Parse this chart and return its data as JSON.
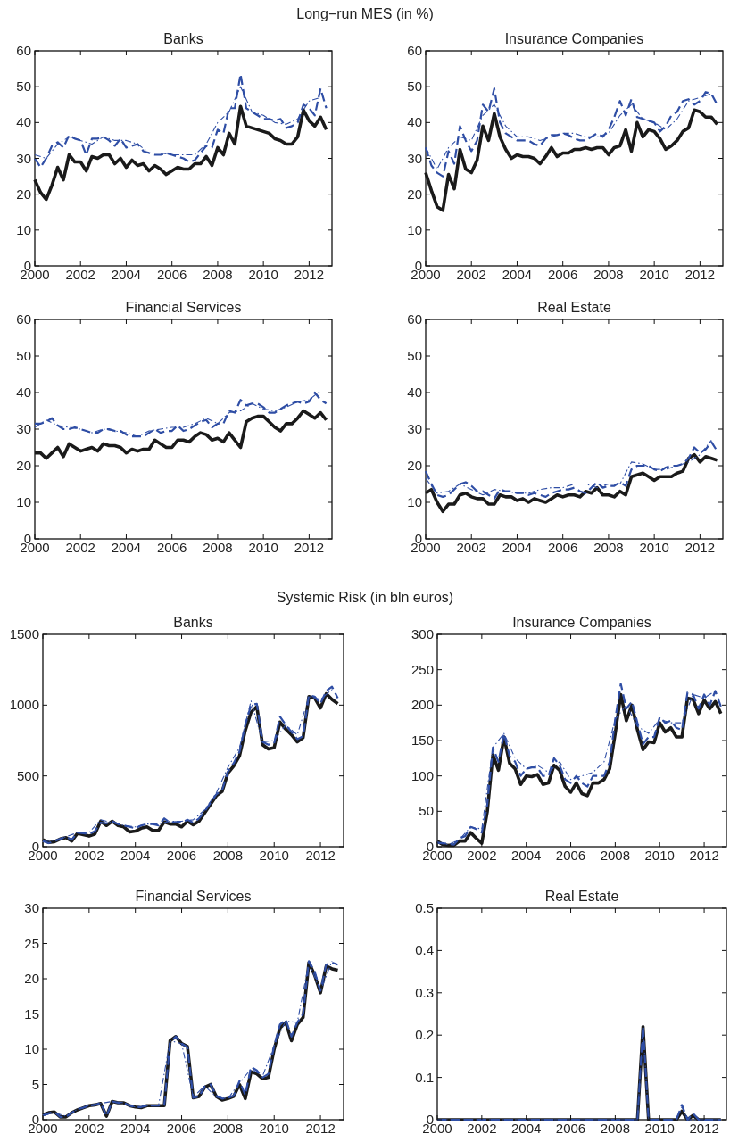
{
  "chart_data": [
    {
      "type": "line",
      "title": "Banks",
      "annotations": [
        "Long−run MES (in %)"
      ],
      "xlim": [
        2000,
        2013
      ],
      "xticks": [
        2000,
        2002,
        2004,
        2006,
        2008,
        2010,
        2012
      ],
      "ylim": [
        0,
        60
      ],
      "yticks": [
        0,
        10,
        20,
        30,
        40,
        50,
        60
      ],
      "grid": false,
      "x": [
        2000,
        2000.25,
        2000.5,
        2000.75,
        2001,
        2001.25,
        2001.5,
        2001.75,
        2002,
        2002.25,
        2002.5,
        2002.75,
        2003,
        2003.25,
        2003.5,
        2003.75,
        2004,
        2004.25,
        2004.5,
        2004.75,
        2005,
        2005.25,
        2005.5,
        2005.75,
        2006,
        2006.25,
        2006.5,
        2006.75,
        2007,
        2007.25,
        2007.5,
        2007.75,
        2008,
        2008.25,
        2008.5,
        2008.75,
        2009,
        2009.25,
        2009.5,
        2009.75,
        2010,
        2010.25,
        2010.5,
        2010.75,
        2011,
        2011.25,
        2011.5,
        2011.75,
        2012,
        2012.25,
        2012.5,
        2012.75
      ],
      "series": [
        {
          "color": "#1a1a1a",
          "line_style": "solid",
          "values": [
            24,
            20.5,
            18.5,
            22.5,
            27.5,
            24,
            31,
            29,
            29,
            26.5,
            30.5,
            30,
            31,
            31,
            28.5,
            30,
            27.5,
            29.5,
            28,
            28.5,
            26.5,
            28,
            27,
            25.5,
            26.5,
            27.5,
            27,
            27,
            28.5,
            28.5,
            30.5,
            28,
            33,
            31,
            37,
            34,
            44.5,
            39,
            38.5,
            38,
            37.5,
            37,
            35.5,
            35,
            34,
            34,
            36,
            43.5,
            40.5,
            39,
            41.5,
            38
          ]
        },
        {
          "color": "#2f4ea5",
          "line_style": "dashed",
          "values": [
            30,
            27.5,
            30,
            33.5,
            34.5,
            33,
            36.5,
            35.5,
            35,
            31,
            35.5,
            35.5,
            36,
            35,
            33.5,
            35.5,
            33,
            33.5,
            34,
            32,
            31.5,
            31,
            31,
            31.5,
            31,
            30.5,
            30,
            29,
            29.5,
            31.5,
            33.5,
            33,
            38,
            37,
            44,
            44,
            53.5,
            44,
            43,
            42,
            41,
            41,
            40.5,
            41,
            38.5,
            39,
            40,
            45,
            44,
            42,
            49.5,
            44
          ]
        },
        {
          "color": "#2f4ea5",
          "line_style": "dotted",
          "x": [
            2000,
            2000.5,
            2001,
            2001.5,
            2002,
            2002.5,
            2003,
            2003.5,
            2004,
            2004.5,
            2005,
            2005.5,
            2006,
            2006.5,
            2007,
            2007.5,
            2008,
            2008.5,
            2009,
            2009.5,
            2010,
            2010.5,
            2011,
            2011.5,
            2012,
            2012.5
          ],
          "values": [
            31,
            30,
            34,
            36,
            35,
            34,
            36,
            35,
            35,
            34,
            31.5,
            31.5,
            31,
            31,
            31,
            34,
            40,
            43,
            50,
            43,
            42,
            40,
            39.5,
            41,
            46,
            47
          ]
        }
      ]
    },
    {
      "type": "line",
      "title": "Insurance Companies",
      "xlim": [
        2000,
        2013
      ],
      "xticks": [
        2000,
        2002,
        2004,
        2006,
        2008,
        2010,
        2012
      ],
      "ylim": [
        0,
        60
      ],
      "yticks": [
        0,
        10,
        20,
        30,
        40,
        50,
        60
      ],
      "grid": false,
      "x": [
        2000,
        2000.25,
        2000.5,
        2000.75,
        2001,
        2001.25,
        2001.5,
        2001.75,
        2002,
        2002.25,
        2002.5,
        2002.75,
        2003,
        2003.25,
        2003.5,
        2003.75,
        2004,
        2004.25,
        2004.5,
        2004.75,
        2005,
        2005.25,
        2005.5,
        2005.75,
        2006,
        2006.25,
        2006.5,
        2006.75,
        2007,
        2007.25,
        2007.5,
        2007.75,
        2008,
        2008.25,
        2008.5,
        2008.75,
        2009,
        2009.25,
        2009.5,
        2009.75,
        2010,
        2010.25,
        2010.5,
        2010.75,
        2011,
        2011.25,
        2011.5,
        2011.75,
        2012,
        2012.25,
        2012.5,
        2012.75
      ],
      "series": [
        {
          "color": "#1a1a1a",
          "line_style": "solid",
          "values": [
            26,
            21,
            16.5,
            15.5,
            25.5,
            21.5,
            32.5,
            27,
            26,
            29.5,
            39,
            35,
            42.5,
            36,
            32.5,
            30,
            31,
            30.5,
            30.5,
            30,
            28.5,
            30.5,
            33,
            30.5,
            31.5,
            31.5,
            32.5,
            32.5,
            33,
            32.5,
            33,
            33,
            31,
            33,
            33.5,
            38,
            32,
            40,
            36,
            38,
            37.5,
            35.5,
            32.5,
            33.5,
            35,
            37.5,
            38.5,
            43.5,
            43,
            41.5,
            41.5,
            39.5
          ]
        },
        {
          "color": "#2f4ea5",
          "line_style": "dashed",
          "values": [
            33,
            28,
            26,
            25,
            32,
            28.5,
            39,
            35,
            32,
            35,
            45,
            43,
            49.5,
            40,
            37,
            36,
            35,
            35,
            35,
            34,
            33.5,
            35.5,
            36.5,
            36.5,
            37,
            36.5,
            35.5,
            35,
            35,
            36,
            37,
            36,
            38,
            41.5,
            46,
            42,
            46.5,
            41.5,
            41,
            40.5,
            40,
            37.5,
            39,
            42,
            43,
            46,
            46.5,
            45,
            46,
            48.5,
            48,
            45
          ]
        },
        {
          "color": "#2f4ea5",
          "line_style": "dotted",
          "x": [
            2000,
            2000.5,
            2001,
            2001.5,
            2002,
            2002.5,
            2003,
            2003.5,
            2004,
            2004.5,
            2005,
            2005.5,
            2006,
            2006.5,
            2007,
            2007.5,
            2008,
            2008.5,
            2009,
            2009.5,
            2010,
            2010.5,
            2011,
            2011.5,
            2012,
            2012.5
          ],
          "values": [
            33,
            27,
            33,
            36,
            35,
            42,
            45,
            39,
            36,
            36,
            35,
            36,
            37,
            37,
            36,
            36,
            37,
            42,
            45,
            41,
            40,
            38,
            41,
            46,
            47,
            48
          ]
        }
      ]
    },
    {
      "type": "line",
      "title": "Financial Services",
      "xlim": [
        2000,
        2013
      ],
      "xticks": [
        2000,
        2002,
        2004,
        2006,
        2008,
        2010,
        2012
      ],
      "ylim": [
        0,
        60
      ],
      "yticks": [
        0,
        10,
        20,
        30,
        40,
        50,
        60
      ],
      "grid": false,
      "x": [
        2000,
        2000.25,
        2000.5,
        2000.75,
        2001,
        2001.25,
        2001.5,
        2001.75,
        2002,
        2002.25,
        2002.5,
        2002.75,
        2003,
        2003.25,
        2003.5,
        2003.75,
        2004,
        2004.25,
        2004.5,
        2004.75,
        2005,
        2005.25,
        2005.5,
        2005.75,
        2006,
        2006.25,
        2006.5,
        2006.75,
        2007,
        2007.25,
        2007.5,
        2007.75,
        2008,
        2008.25,
        2008.5,
        2008.75,
        2009,
        2009.25,
        2009.5,
        2009.75,
        2010,
        2010.25,
        2010.5,
        2010.75,
        2011,
        2011.25,
        2011.5,
        2011.75,
        2012,
        2012.25,
        2012.5,
        2012.75
      ],
      "series": [
        {
          "color": "#1a1a1a",
          "line_style": "solid",
          "values": [
            23.5,
            23.5,
            22,
            23.5,
            25,
            22.5,
            26,
            25,
            24,
            24.5,
            25,
            24,
            26,
            25.5,
            25.5,
            25,
            23.5,
            24.5,
            24,
            24.5,
            24.5,
            27,
            26,
            25,
            25,
            27,
            27,
            26.5,
            28,
            29,
            28.5,
            27,
            27.5,
            26.5,
            29,
            27,
            25,
            32,
            33,
            33.5,
            33.5,
            32,
            30.5,
            29.5,
            31.5,
            31.5,
            33,
            35,
            34,
            33,
            34.5,
            32.5
          ]
        },
        {
          "color": "#2f4ea5",
          "line_style": "dashed",
          "values": [
            31.5,
            31.5,
            32,
            33,
            31,
            30,
            30,
            30.5,
            30,
            29.5,
            29,
            29,
            30,
            30,
            29.5,
            29.5,
            28.5,
            28,
            28,
            28,
            29,
            30,
            29,
            29.5,
            29.5,
            31,
            29.5,
            30,
            31,
            32,
            32.5,
            30.5,
            31.5,
            31.5,
            35,
            34.5,
            38,
            36.5,
            37,
            37,
            36,
            34.5,
            34.5,
            35.5,
            36.5,
            37,
            37.5,
            37,
            37.5,
            40,
            38,
            37
          ]
        },
        {
          "color": "#2f4ea5",
          "line_style": "dotted",
          "x": [
            2000,
            2000.5,
            2001,
            2001.5,
            2002,
            2002.5,
            2003,
            2003.5,
            2004,
            2004.5,
            2005,
            2005.5,
            2006,
            2006.5,
            2007,
            2007.5,
            2008,
            2008.5,
            2009,
            2009.5,
            2010,
            2010.5,
            2011,
            2011.5,
            2012,
            2012.5
          ],
          "values": [
            30.5,
            32.5,
            31,
            30.5,
            30,
            29,
            30,
            29.5,
            29,
            28,
            29.5,
            30,
            30.5,
            30.5,
            31.5,
            33,
            31.5,
            34.5,
            35,
            37,
            35.5,
            35,
            36,
            37.5,
            38,
            40.5
          ]
        }
      ]
    },
    {
      "type": "line",
      "title": "Real Estate",
      "xlim": [
        2000,
        2013
      ],
      "xticks": [
        2000,
        2002,
        2004,
        2006,
        2008,
        2010,
        2012
      ],
      "ylim": [
        0,
        60
      ],
      "yticks": [
        0,
        10,
        20,
        30,
        40,
        50,
        60
      ],
      "grid": false,
      "x": [
        2000,
        2000.25,
        2000.5,
        2000.75,
        2001,
        2001.25,
        2001.5,
        2001.75,
        2002,
        2002.25,
        2002.5,
        2002.75,
        2003,
        2003.25,
        2003.5,
        2003.75,
        2004,
        2004.25,
        2004.5,
        2004.75,
        2005,
        2005.25,
        2005.5,
        2005.75,
        2006,
        2006.25,
        2006.5,
        2006.75,
        2007,
        2007.25,
        2007.5,
        2007.75,
        2008,
        2008.25,
        2008.5,
        2008.75,
        2009,
        2009.25,
        2009.5,
        2009.75,
        2010,
        2010.25,
        2010.5,
        2010.75,
        2011,
        2011.25,
        2011.5,
        2011.75,
        2012,
        2012.25,
        2012.5,
        2012.75
      ],
      "series": [
        {
          "color": "#1a1a1a",
          "line_style": "solid",
          "values": [
            12.5,
            13.5,
            10,
            7.5,
            9.5,
            9.5,
            12,
            12.5,
            11.5,
            11,
            11,
            9.5,
            9.5,
            12,
            11.5,
            11.5,
            10.5,
            11,
            10,
            11,
            10.5,
            10,
            11,
            12,
            11.5,
            12,
            12,
            11.5,
            13,
            12.5,
            14,
            12,
            12,
            11.5,
            13,
            12,
            17,
            17.5,
            18,
            17,
            16,
            17,
            17,
            17,
            18,
            18.5,
            22,
            23,
            21,
            22.5,
            22,
            21.5
          ]
        },
        {
          "color": "#2f4ea5",
          "line_style": "dashed",
          "values": [
            18.5,
            15,
            12,
            11.5,
            12,
            13.5,
            15,
            15.5,
            14.5,
            13,
            13,
            12,
            11,
            13.5,
            13,
            13,
            12.5,
            12.5,
            12,
            12.5,
            12,
            11.5,
            12.5,
            13,
            13.5,
            13.5,
            14,
            13,
            12.5,
            14,
            15.5,
            14,
            14.5,
            14.5,
            15.5,
            14.5,
            19,
            20,
            20,
            20,
            19,
            18.5,
            19.5,
            20,
            20,
            20.5,
            22,
            25,
            23.5,
            24.5,
            26.5,
            24
          ]
        },
        {
          "color": "#2f4ea5",
          "line_style": "dotted",
          "x": [
            2000,
            2000.5,
            2001,
            2001.5,
            2002,
            2002.5,
            2003,
            2003.5,
            2004,
            2004.5,
            2005,
            2005.5,
            2006,
            2006.5,
            2007,
            2007.5,
            2008,
            2008.5,
            2009,
            2009.5,
            2010,
            2010.5,
            2011,
            2011.5,
            2012,
            2012.5
          ],
          "values": [
            16.5,
            12.5,
            13,
            15,
            13.5,
            12,
            13.5,
            13,
            12.5,
            12.5,
            13.5,
            14,
            14,
            15,
            15,
            14,
            15,
            15,
            21,
            20.5,
            19,
            19,
            20,
            21,
            23,
            27
          ]
        }
      ]
    },
    {
      "type": "line",
      "title": "Banks",
      "annotations": [
        "Systemic Risk (in bln euros)"
      ],
      "xlim": [
        2000,
        2013
      ],
      "xticks": [
        2000,
        2002,
        2004,
        2006,
        2008,
        2010,
        2012
      ],
      "ylim": [
        0,
        1500
      ],
      "yticks": [
        0,
        500,
        1000,
        1500
      ],
      "grid": false,
      "x": [
        2000,
        2000.25,
        2000.5,
        2000.75,
        2001,
        2001.25,
        2001.5,
        2001.75,
        2002,
        2002.25,
        2002.5,
        2002.75,
        2003,
        2003.25,
        2003.5,
        2003.75,
        2004,
        2004.25,
        2004.5,
        2004.75,
        2005,
        2005.25,
        2005.5,
        2005.75,
        2006,
        2006.25,
        2006.5,
        2006.75,
        2007,
        2007.25,
        2007.5,
        2007.75,
        2008,
        2008.25,
        2008.5,
        2008.75,
        2009,
        2009.25,
        2009.5,
        2009.75,
        2010,
        2010.25,
        2010.5,
        2010.75,
        2011,
        2011.25,
        2011.5,
        2011.75,
        2012,
        2012.25,
        2012.5,
        2012.75
      ],
      "series": [
        {
          "color": "#1a1a1a",
          "line_style": "solid",
          "values": [
            50,
            30,
            35,
            55,
            65,
            40,
            95,
            85,
            75,
            90,
            180,
            150,
            180,
            150,
            140,
            105,
            110,
            130,
            140,
            115,
            115,
            175,
            160,
            160,
            140,
            180,
            155,
            180,
            240,
            300,
            360,
            390,
            520,
            570,
            640,
            820,
            950,
            990,
            720,
            690,
            700,
            880,
            830,
            790,
            740,
            770,
            1060,
            1050,
            980,
            1080,
            1040,
            1010
          ]
        },
        {
          "color": "#2f4ea5",
          "line_style": "dashed",
          "values": [
            40,
            25,
            40,
            55,
            70,
            50,
            100,
            95,
            90,
            110,
            170,
            165,
            180,
            160,
            150,
            140,
            130,
            150,
            160,
            160,
            150,
            200,
            170,
            175,
            170,
            190,
            170,
            200,
            250,
            310,
            370,
            400,
            530,
            590,
            670,
            860,
            1000,
            1010,
            740,
            720,
            730,
            920,
            860,
            810,
            760,
            780,
            1070,
            1060,
            1010,
            1100,
            1130,
            1050
          ]
        },
        {
          "color": "#2f4ea5",
          "line_style": "dotted",
          "x": [
            2000,
            2000.5,
            2001,
            2001.5,
            2002,
            2002.5,
            2003,
            2003.5,
            2004,
            2004.5,
            2005,
            2005.5,
            2006,
            2006.5,
            2007,
            2007.5,
            2008,
            2008.5,
            2009,
            2009.5,
            2010,
            2010.5,
            2011,
            2011.5,
            2012,
            2012.5
          ],
          "values": [
            45,
            45,
            70,
            100,
            100,
            190,
            170,
            150,
            140,
            160,
            160,
            180,
            180,
            190,
            260,
            380,
            560,
            700,
            1030,
            740,
            750,
            860,
            790,
            1060,
            1040,
            1110
          ]
        }
      ]
    },
    {
      "type": "line",
      "title": "Insurance Companies",
      "xlim": [
        2000,
        2013
      ],
      "xticks": [
        2000,
        2002,
        2004,
        2006,
        2008,
        2010,
        2012
      ],
      "ylim": [
        0,
        300
      ],
      "yticks": [
        0,
        50,
        100,
        150,
        200,
        250,
        300
      ],
      "grid": false,
      "x": [
        2000,
        2000.25,
        2000.5,
        2000.75,
        2001,
        2001.25,
        2001.5,
        2001.75,
        2002,
        2002.25,
        2002.5,
        2002.75,
        2003,
        2003.25,
        2003.5,
        2003.75,
        2004,
        2004.25,
        2004.5,
        2004.75,
        2005,
        2005.25,
        2005.5,
        2005.75,
        2006,
        2006.25,
        2006.5,
        2006.75,
        2007,
        2007.25,
        2007.5,
        2007.75,
        2008,
        2008.25,
        2008.5,
        2008.75,
        2009,
        2009.25,
        2009.5,
        2009.75,
        2010,
        2010.25,
        2010.5,
        2010.75,
        2011,
        2011.25,
        2011.5,
        2011.75,
        2012,
        2012.25,
        2012.5,
        2012.75
      ],
      "series": [
        {
          "color": "#1a1a1a",
          "line_style": "solid",
          "values": [
            8,
            3,
            2,
            2,
            8,
            8,
            20,
            12,
            5,
            50,
            130,
            108,
            155,
            118,
            110,
            88,
            100,
            99,
            102,
            88,
            90,
            115,
            108,
            85,
            77,
            90,
            75,
            72,
            90,
            90,
            95,
            110,
            160,
            215,
            178,
            200,
            165,
            137,
            148,
            147,
            175,
            162,
            168,
            155,
            155,
            210,
            208,
            188,
            207,
            195,
            205,
            188
          ]
        },
        {
          "color": "#2f4ea5",
          "line_style": "dashed",
          "values": [
            6,
            5,
            4,
            3,
            12,
            15,
            28,
            25,
            20,
            60,
            140,
            120,
            160,
            128,
            120,
            100,
            110,
            112,
            112,
            100,
            100,
            125,
            115,
            95,
            90,
            100,
            90,
            85,
            100,
            100,
            100,
            120,
            180,
            230,
            195,
            205,
            175,
            145,
            155,
            155,
            183,
            175,
            178,
            168,
            165,
            218,
            215,
            195,
            215,
            200,
            220,
            198
          ]
        },
        {
          "color": "#2f4ea5",
          "line_style": "dotted",
          "x": [
            2000,
            2000.5,
            2001,
            2001.5,
            2002,
            2002.5,
            2003,
            2003.5,
            2004,
            2004.5,
            2005,
            2005.5,
            2006,
            2006.5,
            2007,
            2007.5,
            2008,
            2008.5,
            2009,
            2009.5,
            2010,
            2010.5,
            2011,
            2011.5,
            2012,
            2012.5
          ],
          "values": [
            5,
            3,
            10,
            28,
            25,
            140,
            160,
            125,
            110,
            115,
            105,
            120,
            95,
            100,
            105,
            120,
            180,
            200,
            170,
            160,
            180,
            175,
            175,
            215,
            210,
            220
          ]
        }
      ]
    },
    {
      "type": "line",
      "title": "Financial Services",
      "xlim": [
        2000,
        2013
      ],
      "xticks": [
        2000,
        2002,
        2004,
        2006,
        2008,
        2010,
        2012
      ],
      "ylim": [
        0,
        30
      ],
      "yticks": [
        0,
        5,
        10,
        15,
        20,
        25,
        30
      ],
      "grid": false,
      "x": [
        2000,
        2000.25,
        2000.5,
        2000.75,
        2001,
        2001.25,
        2001.5,
        2001.75,
        2002,
        2002.25,
        2002.5,
        2002.75,
        2003,
        2003.25,
        2003.5,
        2003.75,
        2004,
        2004.25,
        2004.5,
        2004.75,
        2005,
        2005.25,
        2005.5,
        2005.75,
        2006,
        2006.25,
        2006.5,
        2006.75,
        2007,
        2007.25,
        2007.5,
        2007.75,
        2008,
        2008.25,
        2008.5,
        2008.75,
        2009,
        2009.25,
        2009.5,
        2009.75,
        2010,
        2010.25,
        2010.5,
        2010.75,
        2011,
        2011.25,
        2011.5,
        2011.75,
        2012,
        2012.25,
        2012.5,
        2012.75
      ],
      "series": [
        {
          "color": "#1a1a1a",
          "line_style": "solid",
          "values": [
            0.7,
            1,
            1.1,
            0.4,
            0.4,
            1,
            1.4,
            1.7,
            2,
            2.1,
            2.3,
            0.5,
            2.6,
            2.4,
            2.4,
            2,
            1.8,
            1.7,
            2,
            2,
            2,
            2,
            11.2,
            11.8,
            10.8,
            10.4,
            3.1,
            3.3,
            4.6,
            5,
            3.3,
            2.8,
            3,
            3.3,
            5,
            3,
            6.8,
            6.5,
            5.8,
            6,
            10,
            13,
            13.8,
            11.2,
            13.5,
            14.5,
            22.3,
            20.5,
            18,
            21.8,
            21.4,
            21.2
          ]
        },
        {
          "color": "#2f4ea5",
          "line_style": "dashed",
          "values": [
            0.6,
            0.9,
            1.1,
            0.4,
            0.4,
            1,
            1.5,
            1.7,
            2,
            2.1,
            2.4,
            0.5,
            2.6,
            2.4,
            2.4,
            2,
            1.8,
            1.8,
            2,
            2,
            2,
            2.1,
            11,
            11.8,
            10.8,
            10.3,
            3.1,
            3.3,
            4.7,
            5,
            3.4,
            3,
            3.1,
            3.4,
            5.5,
            3.5,
            7.5,
            7,
            6,
            6.5,
            10.5,
            13.5,
            14.2,
            11.8,
            13.8,
            15,
            22.5,
            21,
            18.3,
            22,
            22.3,
            22
          ]
        },
        {
          "color": "#2f4ea5",
          "line_style": "dotted",
          "x": [
            2000,
            2000.5,
            2001,
            2001.5,
            2002,
            2002.5,
            2003,
            2003.5,
            2004,
            2004.5,
            2005,
            2005.5,
            2006,
            2006.5,
            2007,
            2007.5,
            2008,
            2008.5,
            2009,
            2009.5,
            2010,
            2010.5,
            2011,
            2011.5,
            2012,
            2012.5
          ],
          "values": [
            0.6,
            1,
            0.5,
            1.5,
            2,
            2.3,
            2.6,
            2.4,
            1.8,
            2,
            2,
            11.2,
            10.8,
            3.2,
            4.8,
            3.2,
            3,
            5.2,
            7.2,
            6.2,
            10.5,
            14,
            13.8,
            22.3,
            18.2,
            22.5
          ]
        }
      ]
    },
    {
      "type": "line",
      "title": "Real Estate",
      "xlim": [
        2000,
        2013
      ],
      "xticks": [
        2000,
        2002,
        2004,
        2006,
        2008,
        2010,
        2012
      ],
      "ylim": [
        0,
        0.5
      ],
      "yticks": [
        0,
        0.1,
        0.2,
        0.3,
        0.4,
        0.5
      ],
      "grid": false,
      "x": [
        2000,
        2000.25,
        2000.5,
        2000.75,
        2001,
        2001.25,
        2001.5,
        2001.75,
        2002,
        2002.25,
        2002.5,
        2002.75,
        2003,
        2003.25,
        2003.5,
        2003.75,
        2004,
        2004.25,
        2004.5,
        2004.75,
        2005,
        2005.25,
        2005.5,
        2005.75,
        2006,
        2006.25,
        2006.5,
        2006.75,
        2007,
        2007.25,
        2007.5,
        2007.75,
        2008,
        2008.25,
        2008.5,
        2008.75,
        2009,
        2009.25,
        2009.5,
        2009.75,
        2010,
        2010.25,
        2010.5,
        2010.75,
        2011,
        2011.25,
        2011.5,
        2011.75,
        2012,
        2012.25,
        2012.5,
        2012.75
      ],
      "series": [
        {
          "color": "#1a1a1a",
          "line_style": "solid",
          "values": [
            0,
            0,
            0,
            0,
            0,
            0,
            0,
            0,
            0,
            0,
            0,
            0,
            0,
            0,
            0,
            0,
            0,
            0,
            0,
            0,
            0,
            0,
            0,
            0,
            0,
            0,
            0,
            0,
            0,
            0,
            0,
            0,
            0,
            0,
            0,
            0,
            0,
            0.22,
            0,
            0,
            0,
            0,
            0,
            0,
            0.02,
            0,
            0.01,
            0,
            0,
            0,
            0,
            0
          ]
        },
        {
          "color": "#2f4ea5",
          "line_style": "dashed",
          "values": [
            0,
            0,
            0,
            0,
            0,
            0,
            0,
            0,
            0,
            0,
            0,
            0,
            0,
            0,
            0,
            0,
            0,
            0,
            0,
            0,
            0,
            0,
            0,
            0,
            0,
            0,
            0,
            0,
            0,
            0,
            0,
            0,
            0,
            0,
            0,
            0,
            0,
            0.22,
            0,
            0,
            0,
            0,
            0,
            0,
            0.035,
            0,
            0.015,
            0,
            0,
            0,
            0,
            0
          ]
        },
        {
          "color": "#2f4ea5",
          "line_style": "dotted",
          "x": [
            2000,
            2009,
            2009.25,
            2009.5,
            2010.75,
            2011,
            2011.25,
            2012.75
          ],
          "values": [
            0,
            0,
            0.22,
            0,
            0,
            0.03,
            0,
            0
          ]
        }
      ]
    }
  ]
}
